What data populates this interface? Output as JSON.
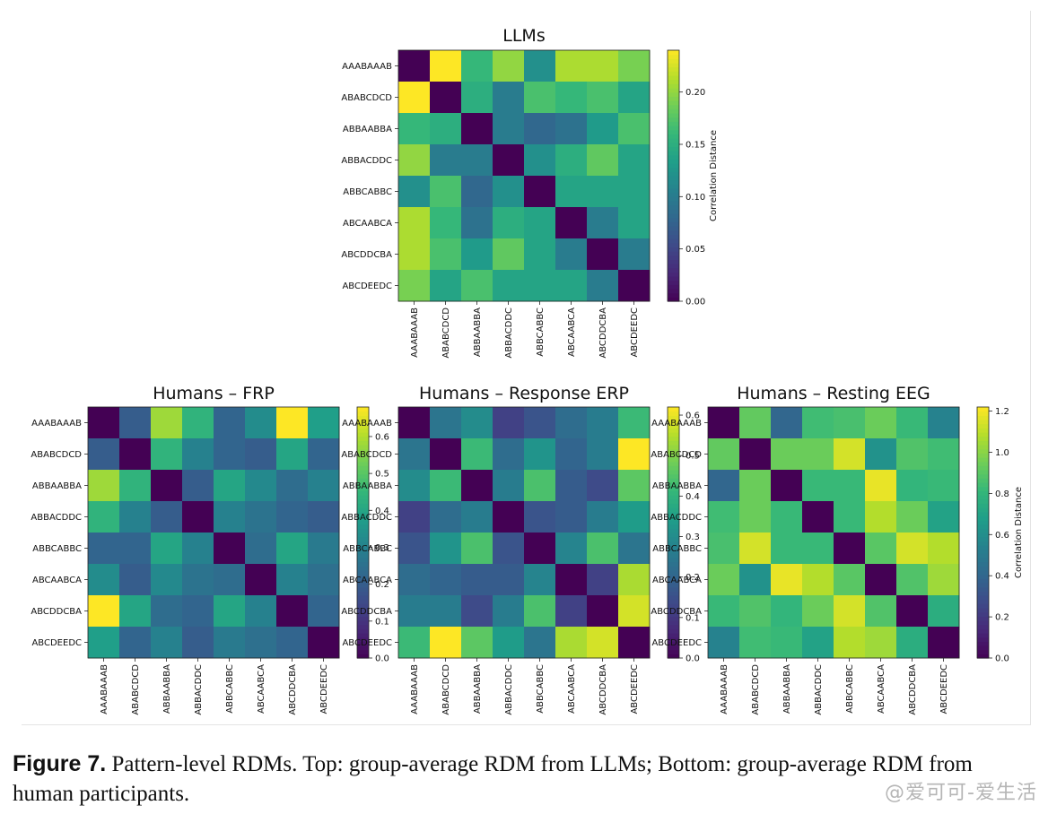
{
  "chart_data": [
    {
      "type": "heatmap",
      "title": "LLMs",
      "colorbar_label": "Correlation Distance",
      "colormap": "viridis",
      "vmin": 0,
      "vmax": 0.24,
      "colorbar_ticks": [
        "0.00",
        "0.05",
        "0.10",
        "0.15",
        "0.20"
      ],
      "colorbar_tick_values": [
        0,
        0.05,
        0.1,
        0.15,
        0.2
      ],
      "labels": [
        "AAABAAAB",
        "ABABCDCD",
        "ABBAABBA",
        "ABBACDDC",
        "ABBCABBC",
        "ABCAABCA",
        "ABCDDCBA",
        "ABCDEEDC"
      ],
      "matrix": [
        [
          0.0,
          0.24,
          0.16,
          0.2,
          0.12,
          0.21,
          0.21,
          0.19
        ],
        [
          0.24,
          0.0,
          0.15,
          0.1,
          0.17,
          0.16,
          0.17,
          0.14
        ],
        [
          0.16,
          0.15,
          0.0,
          0.1,
          0.08,
          0.09,
          0.13,
          0.17
        ],
        [
          0.2,
          0.1,
          0.1,
          0.0,
          0.12,
          0.15,
          0.18,
          0.14
        ],
        [
          0.12,
          0.17,
          0.08,
          0.12,
          0.0,
          0.14,
          0.14,
          0.14
        ],
        [
          0.21,
          0.16,
          0.09,
          0.15,
          0.14,
          0.0,
          0.1,
          0.14
        ],
        [
          0.21,
          0.17,
          0.13,
          0.18,
          0.14,
          0.1,
          0.0,
          0.1
        ],
        [
          0.19,
          0.14,
          0.17,
          0.14,
          0.14,
          0.14,
          0.1,
          0.0
        ]
      ]
    },
    {
      "type": "heatmap",
      "title": "Humans – FRP",
      "colorbar_label": "",
      "colormap": "viridis",
      "vmin": 0,
      "vmax": 0.68,
      "colorbar_ticks": [
        "0.0",
        "0.1",
        "0.2",
        "0.3",
        "0.4",
        "0.5",
        "0.6"
      ],
      "colorbar_tick_values": [
        0,
        0.1,
        0.2,
        0.3,
        0.4,
        0.5,
        0.6
      ],
      "labels": [
        "AAABAAAB",
        "ABABCDCD",
        "ABBAABBA",
        "ABBACDDC",
        "ABBCABBC",
        "ABCAABCA",
        "ABCDDCBA",
        "ABCDEEDC"
      ],
      "matrix": [
        [
          0.0,
          0.2,
          0.58,
          0.44,
          0.22,
          0.33,
          0.68,
          0.38
        ],
        [
          0.2,
          0.0,
          0.44,
          0.3,
          0.22,
          0.2,
          0.4,
          0.22
        ],
        [
          0.58,
          0.44,
          0.0,
          0.2,
          0.4,
          0.32,
          0.24,
          0.3
        ],
        [
          0.44,
          0.3,
          0.2,
          0.0,
          0.3,
          0.26,
          0.22,
          0.2
        ],
        [
          0.22,
          0.22,
          0.4,
          0.3,
          0.0,
          0.24,
          0.4,
          0.28
        ],
        [
          0.33,
          0.2,
          0.32,
          0.26,
          0.24,
          0.0,
          0.3,
          0.25
        ],
        [
          0.68,
          0.4,
          0.24,
          0.22,
          0.4,
          0.3,
          0.0,
          0.22
        ],
        [
          0.38,
          0.22,
          0.3,
          0.2,
          0.28,
          0.25,
          0.22,
          0.0
        ]
      ]
    },
    {
      "type": "heatmap",
      "title": "Humans – Response ERP",
      "colorbar_label": "",
      "colormap": "viridis",
      "vmin": 0,
      "vmax": 0.62,
      "colorbar_ticks": [
        "0.0",
        "0.1",
        "0.2",
        "0.3",
        "0.4",
        "0.5",
        "0.6"
      ],
      "colorbar_tick_values": [
        0,
        0.1,
        0.2,
        0.3,
        0.4,
        0.5,
        0.6
      ],
      "labels": [
        "AAABAAAB",
        "ABABCDCD",
        "ABBAABBA",
        "ABBACDDC",
        "ABBCABBC",
        "ABCAABCA",
        "ABCDDCBA",
        "ABCDEEDC"
      ],
      "matrix": [
        [
          0.0,
          0.24,
          0.3,
          0.12,
          0.16,
          0.22,
          0.26,
          0.42
        ],
        [
          0.24,
          0.0,
          0.42,
          0.22,
          0.32,
          0.2,
          0.26,
          0.62
        ],
        [
          0.3,
          0.42,
          0.0,
          0.26,
          0.44,
          0.18,
          0.14,
          0.46
        ],
        [
          0.12,
          0.22,
          0.26,
          0.0,
          0.16,
          0.18,
          0.26,
          0.34
        ],
        [
          0.16,
          0.32,
          0.44,
          0.16,
          0.0,
          0.28,
          0.44,
          0.24
        ],
        [
          0.22,
          0.2,
          0.18,
          0.18,
          0.28,
          0.0,
          0.12,
          0.54
        ],
        [
          0.26,
          0.26,
          0.14,
          0.26,
          0.44,
          0.12,
          0.0,
          0.58
        ],
        [
          0.42,
          0.62,
          0.46,
          0.34,
          0.24,
          0.54,
          0.58,
          0.0
        ]
      ]
    },
    {
      "type": "heatmap",
      "title": "Humans – Resting EEG",
      "colorbar_label": "Correlation Distance",
      "colormap": "viridis",
      "vmin": 0,
      "vmax": 1.22,
      "colorbar_ticks": [
        "0.0",
        "0.2",
        "0.4",
        "0.6",
        "0.8",
        "1.0",
        "1.2"
      ],
      "colorbar_tick_values": [
        0,
        0.2,
        0.4,
        0.6,
        0.8,
        1.0,
        1.2
      ],
      "labels": [
        "AAABAAAB",
        "ABABCDCD",
        "ABBAABBA",
        "ABBACDDC",
        "ABBCABBC",
        "ABCAABCA",
        "ABCDDCBA",
        "ABCDEEDC"
      ],
      "matrix": [
        [
          0.0,
          0.92,
          0.4,
          0.84,
          0.86,
          0.94,
          0.82,
          0.54
        ],
        [
          0.92,
          0.0,
          0.94,
          0.94,
          1.14,
          0.62,
          0.88,
          0.84
        ],
        [
          0.4,
          0.94,
          0.0,
          0.82,
          0.82,
          1.18,
          0.8,
          0.82
        ],
        [
          0.84,
          0.94,
          0.82,
          0.0,
          0.82,
          1.08,
          0.94,
          0.7
        ],
        [
          0.86,
          1.14,
          0.82,
          0.82,
          0.0,
          0.9,
          1.14,
          1.08
        ],
        [
          0.94,
          0.62,
          1.18,
          1.08,
          0.9,
          0.0,
          0.88,
          1.04
        ],
        [
          0.82,
          0.88,
          0.8,
          0.94,
          1.14,
          0.88,
          0.0,
          0.76
        ],
        [
          0.54,
          0.84,
          0.82,
          0.7,
          1.08,
          1.04,
          0.76,
          0.0
        ]
      ]
    }
  ],
  "caption": {
    "label": "Figure 7.",
    "text": "Pattern-level RDMs. Top: group-average RDM from LLMs; Bottom: group-average RDM from human participants."
  },
  "watermark": "@爱可可-爱生活"
}
